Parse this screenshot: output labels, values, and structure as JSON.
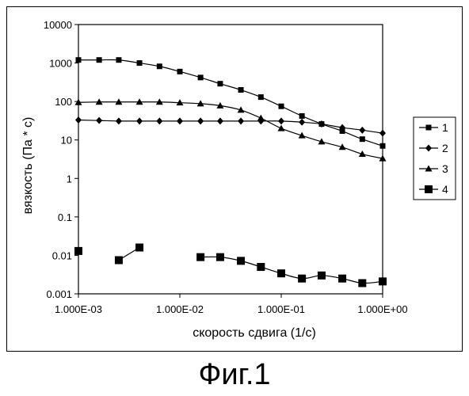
{
  "figure_caption": "Фиг.1",
  "chart_data": {
    "type": "line",
    "xscale": "log",
    "yscale": "log",
    "xlabel": "скорость сдвига (1/с)",
    "ylabel": "вязкость (Па * с)",
    "xlim": [
      0.001,
      1.0
    ],
    "ylim": [
      0.001,
      10000
    ],
    "x_ticks": [
      0.001,
      0.01,
      0.1,
      1.0
    ],
    "x_tick_labels": [
      "1.000E-03",
      "1.000E-02",
      "1.000E-01",
      "1.000E+00"
    ],
    "y_ticks": [
      0.001,
      0.01,
      0.1,
      1,
      10,
      100,
      1000,
      10000
    ],
    "y_tick_labels": [
      "0.001",
      "0.01",
      "0.1",
      "1",
      "10",
      "100",
      "1000",
      "10000"
    ],
    "grid": false,
    "legend_position": "right",
    "series": [
      {
        "name": "1",
        "marker": "square-small",
        "segments": [
          [
            [
              0.001,
              1200
            ],
            [
              0.0016,
              1200
            ],
            [
              0.0025,
              1200
            ],
            [
              0.004,
              1000
            ],
            [
              0.0063,
              820
            ],
            [
              0.01,
              600
            ],
            [
              0.016,
              420
            ],
            [
              0.025,
              290
            ],
            [
              0.04,
              200
            ],
            [
              0.063,
              130
            ],
            [
              0.1,
              75
            ],
            [
              0.16,
              42
            ],
            [
              0.25,
              26
            ],
            [
              0.4,
              17
            ],
            [
              0.63,
              10.5
            ],
            [
              1.0,
              7
            ]
          ]
        ]
      },
      {
        "name": "2",
        "marker": "diamond",
        "segments": [
          [
            [
              0.001,
              33
            ],
            [
              0.0016,
              32
            ],
            [
              0.0025,
              31
            ],
            [
              0.004,
              31
            ],
            [
              0.0063,
              31
            ],
            [
              0.01,
              31
            ],
            [
              0.016,
              31
            ],
            [
              0.025,
              31
            ],
            [
              0.04,
              31
            ],
            [
              0.063,
              31
            ],
            [
              0.1,
              31
            ],
            [
              0.16,
              29
            ],
            [
              0.25,
              26
            ],
            [
              0.4,
              21
            ],
            [
              0.63,
              18
            ],
            [
              1.0,
              15
            ]
          ]
        ]
      },
      {
        "name": "3",
        "marker": "triangle",
        "segments": [
          [
            [
              0.001,
              95
            ],
            [
              0.0016,
              97
            ],
            [
              0.0025,
              97
            ],
            [
              0.004,
              97
            ],
            [
              0.0063,
              97
            ],
            [
              0.01,
              93
            ],
            [
              0.016,
              88
            ],
            [
              0.025,
              78
            ],
            [
              0.04,
              60
            ],
            [
              0.063,
              37
            ],
            [
              0.1,
              20
            ],
            [
              0.16,
              13
            ],
            [
              0.25,
              9
            ],
            [
              0.4,
              6.5
            ],
            [
              0.63,
              4.3
            ],
            [
              1.0,
              3.3
            ]
          ]
        ]
      },
      {
        "name": "4",
        "marker": "square-large",
        "segments": [
          [
            [
              0.001,
              0.013
            ]
          ],
          [
            [
              0.0025,
              0.0075
            ],
            [
              0.004,
              0.016
            ]
          ],
          [
            [
              0.016,
              0.009
            ],
            [
              0.025,
              0.009
            ],
            [
              0.04,
              0.0072
            ],
            [
              0.063,
              0.005
            ],
            [
              0.1,
              0.0034
            ],
            [
              0.16,
              0.0025
            ],
            [
              0.25,
              0.003
            ],
            [
              0.4,
              0.0025
            ],
            [
              0.63,
              0.0019
            ],
            [
              1.0,
              0.0021
            ]
          ]
        ]
      }
    ]
  }
}
